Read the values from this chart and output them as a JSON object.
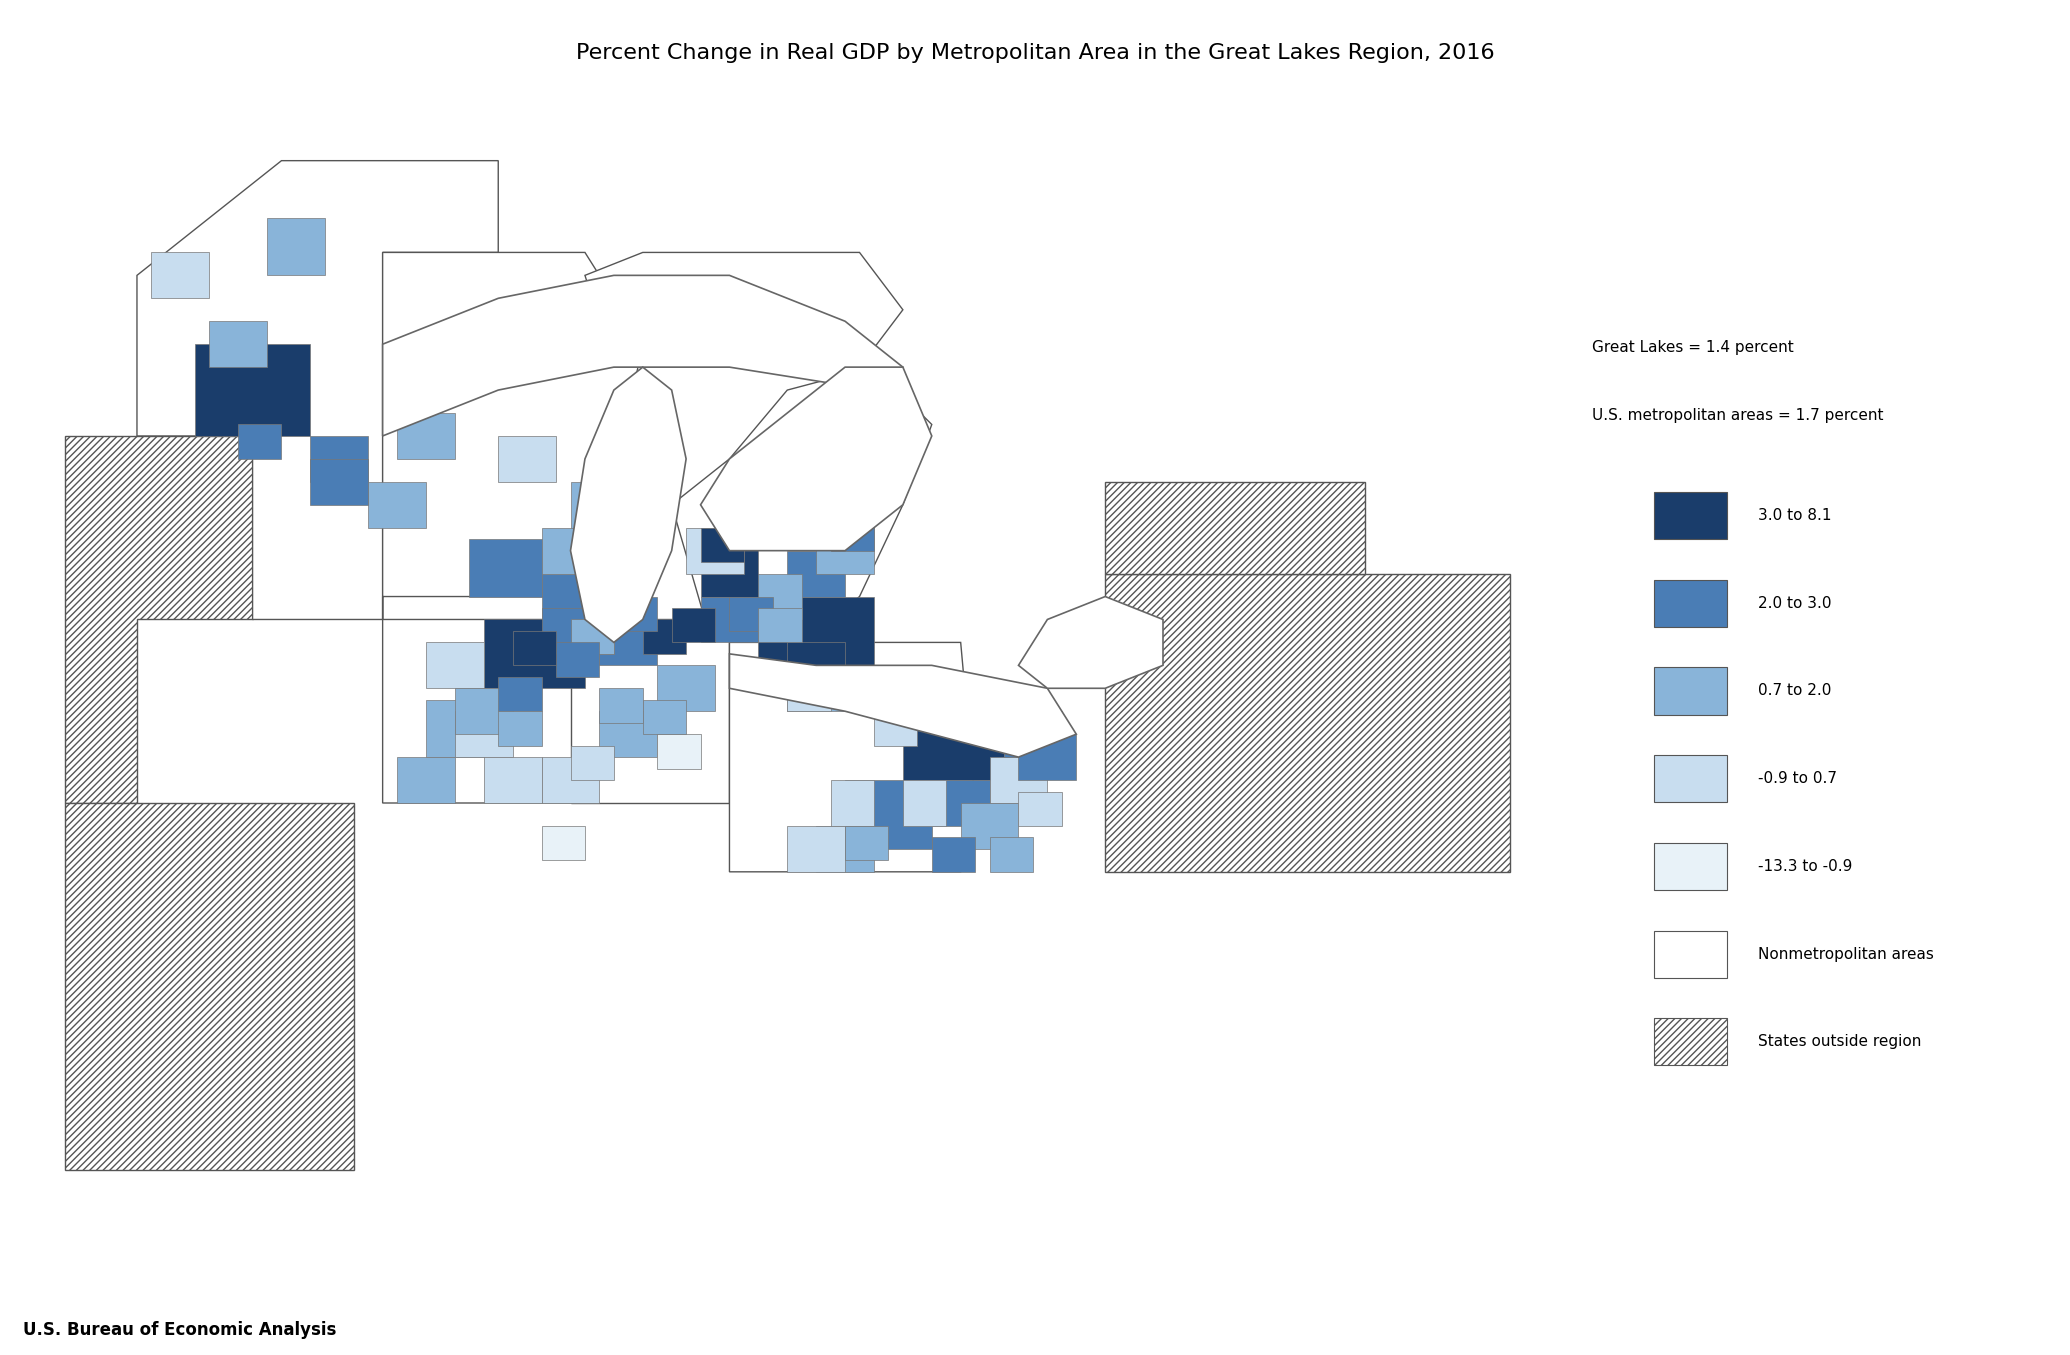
{
  "title": "Percent Change in Real GDP by Metropolitan Area in the Great Lakes Region, 2016",
  "title_fontsize": 16,
  "footer_text": "U.S. Bureau of Economic Analysis",
  "footer_fontsize": 12,
  "legend_header1": "Great Lakes = 1.4 percent",
  "legend_header2": "U.S. metropolitan areas = 1.7 percent",
  "legend_labels": [
    "3.0 to 8.1",
    "2.0 to 3.0",
    "0.7 to 2.0",
    "-0.9 to 0.7",
    "-13.3 to -0.9",
    "Nonmetropolitan areas",
    "States outside region"
  ],
  "colors": {
    "dark_blue": "#1a3d6b",
    "medium_blue": "#4a7db5",
    "light_blue": "#89b4d9",
    "very_light_blue": "#c8ddef",
    "pale_blue": "#e8f2f8",
    "white": "#ffffff",
    "hatch": "#ffffff"
  },
  "background_color": "#ffffff",
  "border_color": "#555555",
  "map_background": "#ffffff"
}
